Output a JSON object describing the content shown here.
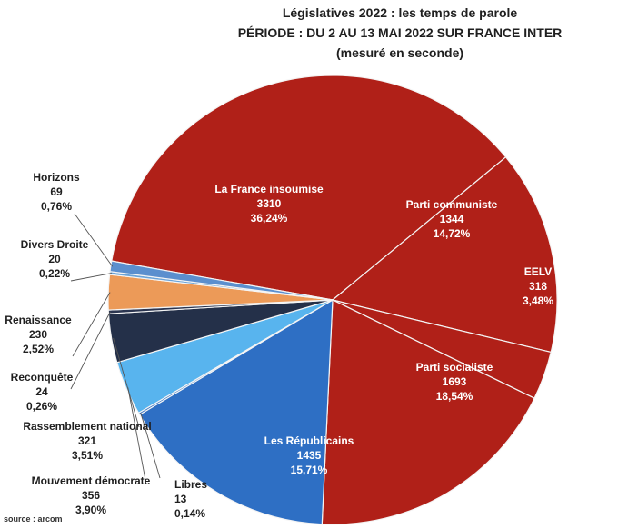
{
  "title_lines": [
    "Législatives 2022 : les temps de parole",
    "PÉRIODE : DU 2 AU 13 MAI 2022 SUR FRANCE INTER",
    "(mesuré en seconde)"
  ],
  "source": "source : arcom",
  "chart_data": {
    "type": "pie",
    "title": "Législatives 2022 : les temps de parole — PÉRIODE : DU 2 AU 13 MAI 2022 SUR FRANCE INTER (mesuré en seconde)",
    "unit": "seconde",
    "slices": [
      {
        "label": "La France insoumise",
        "value": 3310,
        "percent": "36,24%",
        "color": "#b02018"
      },
      {
        "label": "Parti communiste",
        "value": 1344,
        "percent": "14,72%",
        "color": "#b02018"
      },
      {
        "label": "EELV",
        "value": 318,
        "percent": "3,48%",
        "color": "#b02018"
      },
      {
        "label": "Parti socialiste",
        "value": 1693,
        "percent": "18,54%",
        "color": "#b02018"
      },
      {
        "label": "Les Républicains",
        "value": 1435,
        "percent": "15,71%",
        "color": "#2e6fc4"
      },
      {
        "label": "Libres",
        "value": 13,
        "percent": "0,14%",
        "color": "#2e6fc4"
      },
      {
        "label": "Mouvement démocrate",
        "value": 356,
        "percent": "3,90%",
        "color": "#58b4ee"
      },
      {
        "label": "Rassemblement national",
        "value": 321,
        "percent": "3,51%",
        "color": "#243049"
      },
      {
        "label": "Reconquête",
        "value": 24,
        "percent": "0,26%",
        "color": "#2b3550"
      },
      {
        "label": "Renaissance",
        "value": 230,
        "percent": "2,52%",
        "color": "#ec9a58"
      },
      {
        "label": "Divers Droite",
        "value": 20,
        "percent": "0,22%",
        "color": "#6aa3d8"
      },
      {
        "label": "Horizons",
        "value": 69,
        "percent": "0,76%",
        "color": "#5b8fce"
      }
    ]
  }
}
